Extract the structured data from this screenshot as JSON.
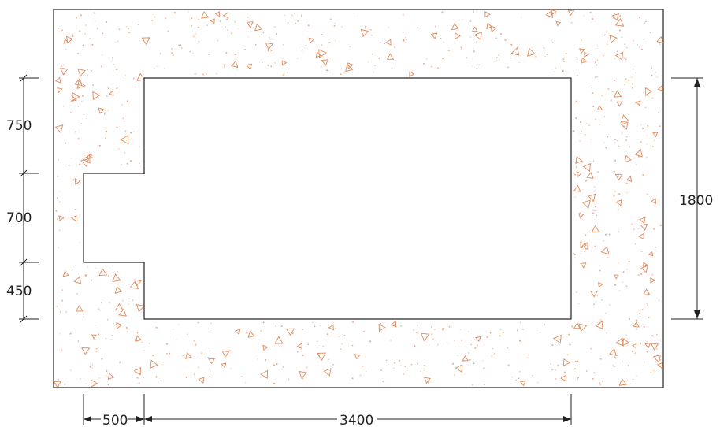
{
  "colors": {
    "outline": "#222222",
    "concrete_hatch": "#e08a5a",
    "background": "#ffffff"
  },
  "hatch": {
    "pattern": "concrete-speckle"
  },
  "dimensions": {
    "left": [
      {
        "id": "dim-750",
        "label": "750"
      },
      {
        "id": "dim-700",
        "label": "700"
      },
      {
        "id": "dim-450",
        "label": "450"
      }
    ],
    "right": {
      "id": "dim-1800",
      "label": "1800"
    },
    "bottom": [
      {
        "id": "dim-500",
        "label": "500"
      },
      {
        "id": "dim-3400",
        "label": "3400"
      }
    ]
  }
}
